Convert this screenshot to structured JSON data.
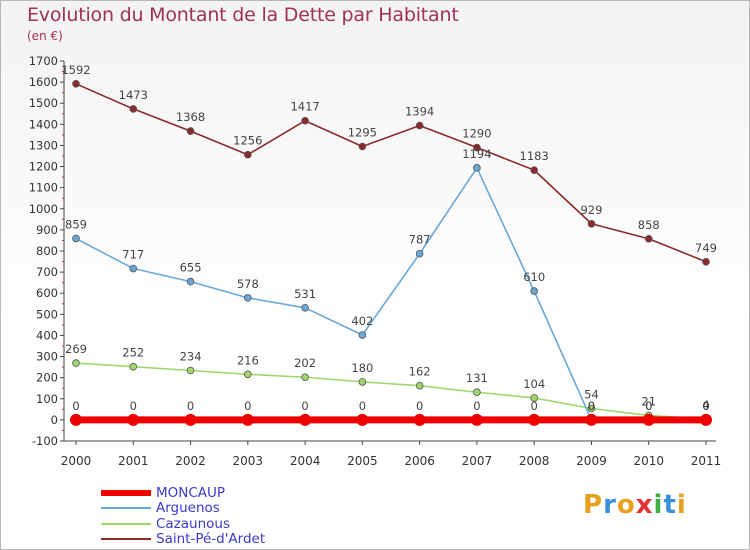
{
  "chart_data": {
    "type": "line",
    "title": "Evolution du Montant de la Dette par Habitant",
    "subtitle": "(en €)",
    "x": [
      "2000",
      "2001",
      "2002",
      "2003",
      "2004",
      "2005",
      "2006",
      "2007",
      "2008",
      "2009",
      "2010",
      "2011"
    ],
    "ylim": [
      -100,
      1700
    ],
    "yticks": [
      -100,
      0,
      100,
      200,
      300,
      400,
      500,
      600,
      700,
      800,
      900,
      1000,
      1100,
      1200,
      1300,
      1400,
      1500,
      1600,
      1700
    ],
    "grid": false,
    "legend_position": "bottom-left",
    "series": [
      {
        "name": "MONCAUP",
        "color": "#ee0000",
        "values": [
          0,
          0,
          0,
          0,
          0,
          0,
          0,
          0,
          0,
          0,
          0,
          0
        ],
        "labels": [
          "0",
          "0",
          "0",
          "0",
          "0",
          "0",
          "0",
          "0",
          "0",
          "0",
          "0",
          "0"
        ]
      },
      {
        "name": "Arguenos",
        "color": "#6aa8d8",
        "values": [
          859,
          717,
          655,
          578,
          531,
          402,
          787,
          1194,
          610,
          0,
          0,
          0
        ],
        "labels": [
          "859",
          "717",
          "655",
          "578",
          "531",
          "402",
          "787",
          "1194",
          "610",
          "0",
          "0",
          "0"
        ]
      },
      {
        "name": "Cazaunous",
        "color": "#9ed86a",
        "values": [
          269,
          252,
          234,
          216,
          202,
          180,
          162,
          131,
          104,
          54,
          21,
          4
        ],
        "labels": [
          "269",
          "252",
          "234",
          "216",
          "202",
          "180",
          "162",
          "131",
          "104",
          "54",
          "21",
          "4"
        ]
      },
      {
        "name": "Saint-Pé-d'Ardet",
        "color": "#8a2a2a",
        "values": [
          1592,
          1473,
          1368,
          1256,
          1417,
          1295,
          1394,
          1290,
          1183,
          929,
          858,
          749
        ],
        "labels": [
          "1592",
          "1473",
          "1368",
          "1256",
          "1417",
          "1295",
          "1394",
          "1290",
          "1183",
          "929",
          "858",
          "749"
        ]
      }
    ]
  },
  "logo": {
    "text": "Proxiti",
    "colors": [
      "#e8a020",
      "#3a90d8",
      "#e8a020",
      "#e83030",
      "#40b040",
      "#3a90d8",
      "#e8a020"
    ]
  }
}
